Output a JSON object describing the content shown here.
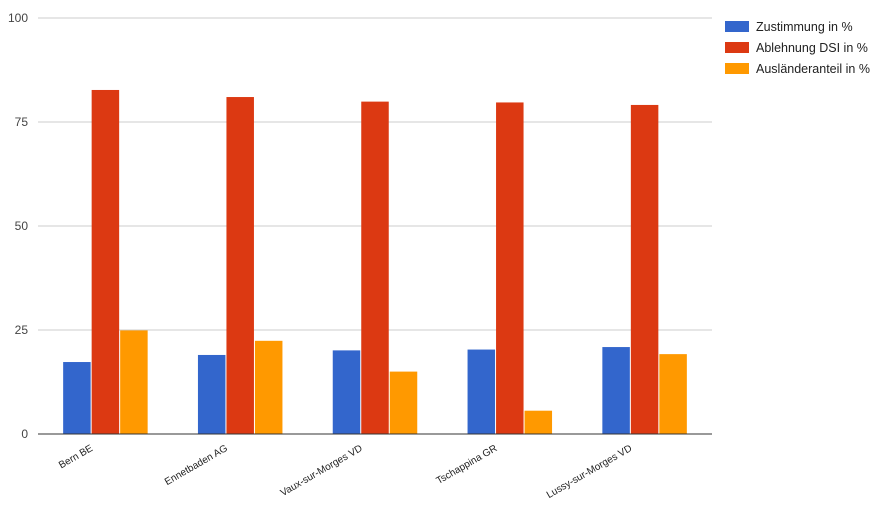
{
  "chart_data": {
    "type": "bar",
    "title": "",
    "xlabel": "",
    "ylabel": "",
    "ylim": [
      0,
      100
    ],
    "yticks": [
      0,
      25,
      50,
      75,
      100
    ],
    "grid": true,
    "legend_position": "right",
    "categories": [
      "Bern BE",
      "Ennetbaden AG",
      "Vaux-sur-Morges VD",
      "Tschappina GR",
      "Lussy-sur-Morges VD"
    ],
    "series": [
      {
        "name": "Zustimmung in %",
        "color": "#3366cc",
        "values": [
          17.3,
          19.0,
          20.1,
          20.3,
          20.9
        ]
      },
      {
        "name": "Ablehnung DSI in %",
        "color": "#dc3912",
        "values": [
          82.7,
          81.0,
          79.9,
          79.7,
          79.1
        ]
      },
      {
        "name": "Ausländeranteil in %",
        "color": "#ff9900",
        "values": [
          24.9,
          22.4,
          15.0,
          5.6,
          19.2
        ]
      }
    ]
  }
}
